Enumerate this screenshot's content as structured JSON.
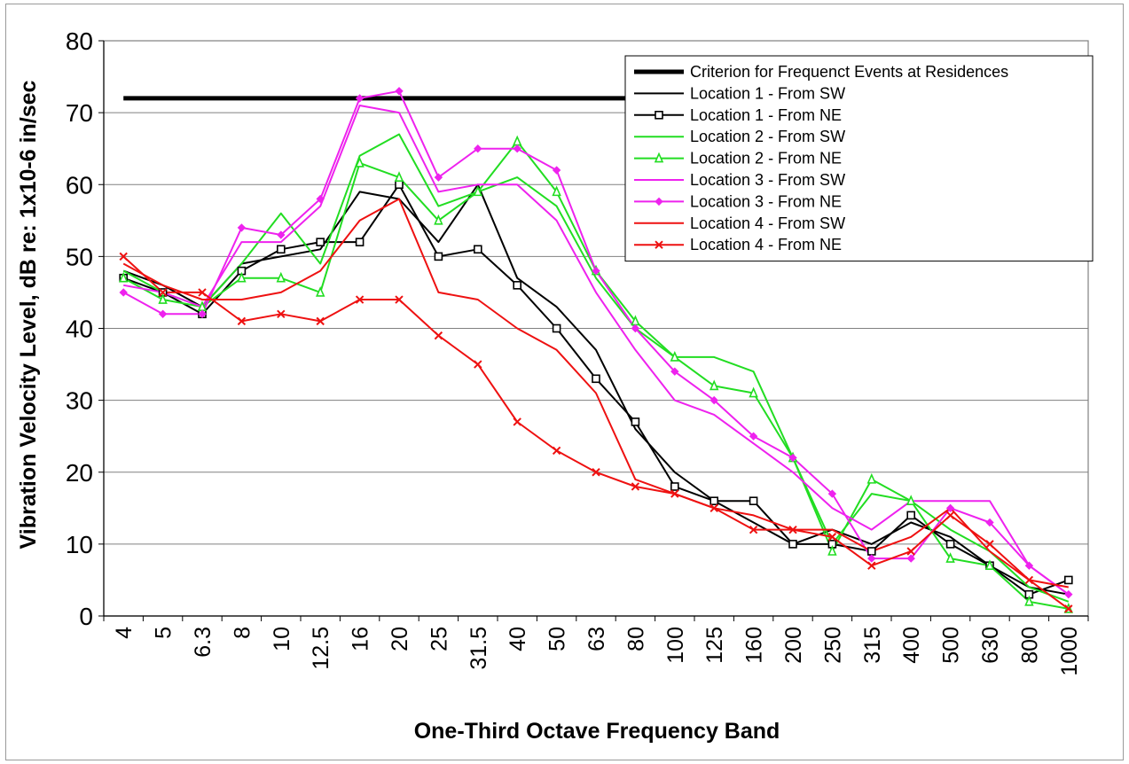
{
  "chart_data": {
    "type": "line",
    "title": "",
    "xlabel": "One-Third Octave Frequency Band",
    "ylabel": "Vibration Velocity Level, dB re: 1x10-6 in/sec",
    "ylim": [
      0,
      80
    ],
    "yticks": [
      0,
      10,
      20,
      30,
      40,
      50,
      60,
      70,
      80
    ],
    "grid": true,
    "legend_position": "top-right",
    "categories": [
      "4",
      "5",
      "6.3",
      "8",
      "10",
      "12.5",
      "16",
      "20",
      "25",
      "31.5",
      "40",
      "50",
      "63",
      "80",
      "100",
      "125",
      "160",
      "200",
      "250",
      "315",
      "400",
      "500",
      "630",
      "800",
      "1000"
    ],
    "series": [
      {
        "name": "Criterion for Frequenct Events at Residences",
        "color": "#000000",
        "style": "criterion",
        "values": [
          72,
          72,
          72,
          72,
          72,
          72,
          72,
          72,
          72,
          72,
          72,
          72,
          72,
          72,
          72,
          72,
          72,
          72,
          72,
          72,
          72,
          72,
          72,
          72,
          72
        ]
      },
      {
        "name": "Location 1 - From SW",
        "color": "#000000",
        "marker": "none",
        "values": [
          48,
          46,
          43,
          49,
          50,
          51,
          59,
          58,
          52,
          60,
          47,
          43,
          37,
          26,
          20,
          16,
          13,
          10,
          12,
          10,
          13,
          11,
          7,
          4,
          3
        ]
      },
      {
        "name": "Location 1 - From NE",
        "color": "#000000",
        "marker": "square",
        "values": [
          47,
          45,
          42,
          48,
          51,
          52,
          52,
          60,
          50,
          51,
          46,
          40,
          33,
          27,
          18,
          16,
          16,
          10,
          10,
          9,
          14,
          10,
          7,
          3,
          5
        ]
      },
      {
        "name": "Location 2 - From SW",
        "color": "#22dd22",
        "marker": "none",
        "values": [
          48,
          45,
          43,
          49,
          56,
          49,
          64,
          67,
          57,
          59,
          61,
          57,
          47,
          40,
          36,
          36,
          34,
          22,
          10,
          17,
          16,
          12,
          9,
          4,
          2
        ]
      },
      {
        "name": "Location 2 - From NE",
        "color": "#22dd22",
        "marker": "triangle",
        "values": [
          47,
          44,
          43,
          47,
          47,
          45,
          63,
          61,
          55,
          59,
          66,
          59,
          48,
          41,
          36,
          32,
          31,
          22,
          9,
          19,
          16,
          8,
          7,
          2,
          1
        ]
      },
      {
        "name": "Location 3 - From SW",
        "color": "#ee22ee",
        "marker": "none",
        "values": [
          46,
          45,
          43,
          52,
          52,
          57,
          71,
          70,
          59,
          60,
          60,
          55,
          45,
          37,
          30,
          28,
          24,
          20,
          15,
          12,
          16,
          16,
          16,
          7,
          3
        ]
      },
      {
        "name": "Location 3 - From NE",
        "color": "#ee22ee",
        "marker": "diamond",
        "values": [
          45,
          42,
          42,
          54,
          53,
          58,
          72,
          73,
          61,
          65,
          65,
          62,
          48,
          40,
          34,
          30,
          25,
          22,
          17,
          8,
          8,
          15,
          13,
          7,
          3
        ]
      },
      {
        "name": "Location 4 - From SW",
        "color": "#ee1111",
        "marker": "none",
        "values": [
          49,
          46,
          44,
          44,
          45,
          48,
          55,
          58,
          45,
          44,
          40,
          37,
          31,
          19,
          17,
          15,
          14,
          12,
          12,
          9,
          11,
          15,
          9,
          5,
          4
        ]
      },
      {
        "name": "Location 4 - From NE",
        "color": "#ee1111",
        "marker": "x",
        "values": [
          50,
          45,
          45,
          41,
          42,
          41,
          44,
          44,
          39,
          35,
          27,
          23,
          20,
          18,
          17,
          15,
          12,
          12,
          11,
          7,
          9,
          14,
          10,
          5,
          1
        ]
      }
    ]
  }
}
